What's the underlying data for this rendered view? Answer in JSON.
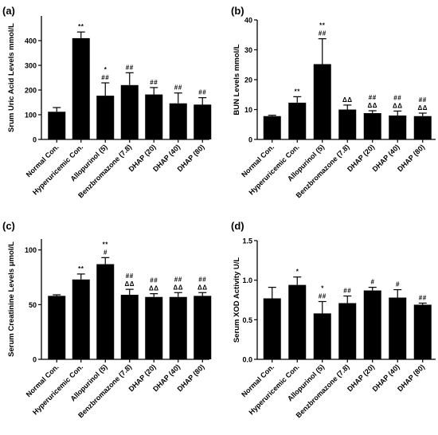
{
  "categories": [
    "Normal Con.",
    "Hyperuricemic Con.",
    "Allopurinol (5)",
    "Benzbromazone (7.8)",
    "DHAP (20)",
    "DHAP (40)",
    "DHAP (80)"
  ],
  "chart_data": [
    {
      "type": "bar",
      "panel": "(a)",
      "ylabel": "Srum Uric Acid Levels mmol/L",
      "ylim": [
        0,
        500
      ],
      "yticks": [
        0,
        100,
        200,
        300,
        400
      ],
      "values": [
        112,
        410,
        177,
        220,
        182,
        146,
        141
      ],
      "errors": [
        17,
        25,
        52,
        50,
        28,
        42,
        28
      ],
      "annotations": [
        {
          "index": 1,
          "lines": [
            "**"
          ]
        },
        {
          "index": 2,
          "lines": [
            "*",
            "##"
          ]
        },
        {
          "index": 3,
          "lines": [
            "##"
          ]
        },
        {
          "index": 4,
          "lines": [
            "##"
          ]
        },
        {
          "index": 5,
          "lines": [
            "##"
          ]
        },
        {
          "index": 6,
          "lines": [
            "##"
          ]
        }
      ]
    },
    {
      "type": "bar",
      "panel": "(b)",
      "ylabel": "BUN Levels mmol/L",
      "ylim": [
        0,
        40
      ],
      "yticks": [
        0,
        10,
        20,
        30,
        40
      ],
      "values": [
        7.8,
        12.3,
        25.2,
        10.0,
        8.8,
        8.0,
        7.8
      ],
      "errors": [
        0.3,
        2.0,
        8.5,
        1.5,
        0.8,
        1.5,
        1.0
      ],
      "annotations": [
        {
          "index": 1,
          "lines": [
            "**"
          ]
        },
        {
          "index": 2,
          "lines": [
            "**",
            "##"
          ]
        },
        {
          "index": 3,
          "lines": [
            "ΔΔ"
          ]
        },
        {
          "index": 4,
          "lines": [
            "##",
            "ΔΔ"
          ]
        },
        {
          "index": 5,
          "lines": [
            "##",
            "ΔΔ"
          ]
        },
        {
          "index": 6,
          "lines": [
            "##",
            "ΔΔ"
          ]
        }
      ]
    },
    {
      "type": "bar",
      "panel": "(c)",
      "ylabel": "Serum Creatinine Levels μmol/L",
      "ylim": [
        0,
        110
      ],
      "yticks": [
        0,
        50,
        100
      ],
      "values": [
        58,
        73,
        87,
        59,
        57,
        57,
        58
      ],
      "errors": [
        1,
        5,
        6,
        5,
        3,
        4,
        3
      ],
      "annotations": [
        {
          "index": 1,
          "lines": [
            "**"
          ]
        },
        {
          "index": 2,
          "lines": [
            "**",
            "#"
          ]
        },
        {
          "index": 3,
          "lines": [
            "##",
            "ΔΔ"
          ]
        },
        {
          "index": 4,
          "lines": [
            "##",
            "ΔΔ"
          ]
        },
        {
          "index": 5,
          "lines": [
            "##",
            "ΔΔ"
          ]
        },
        {
          "index": 6,
          "lines": [
            "##",
            "ΔΔ"
          ]
        }
      ]
    },
    {
      "type": "bar",
      "panel": "(d)",
      "ylabel": "Serum XOD Activity U/L",
      "ylim": [
        0,
        1.5
      ],
      "yticks": [
        0.0,
        0.5,
        1.0,
        1.5
      ],
      "ytick_labels": [
        "0.0",
        "0.5",
        "1.0",
        "1.5"
      ],
      "values": [
        0.77,
        0.94,
        0.58,
        0.71,
        0.87,
        0.78,
        0.69
      ],
      "errors": [
        0.14,
        0.1,
        0.15,
        0.09,
        0.04,
        0.1,
        0.02
      ],
      "annotations": [
        {
          "index": 1,
          "lines": [
            "*"
          ]
        },
        {
          "index": 2,
          "lines": [
            "*",
            "##"
          ]
        },
        {
          "index": 3,
          "lines": [
            "##"
          ]
        },
        {
          "index": 4,
          "lines": [
            "#"
          ]
        },
        {
          "index": 5,
          "lines": [
            "#"
          ]
        },
        {
          "index": 6,
          "lines": [
            "##"
          ]
        }
      ]
    }
  ]
}
